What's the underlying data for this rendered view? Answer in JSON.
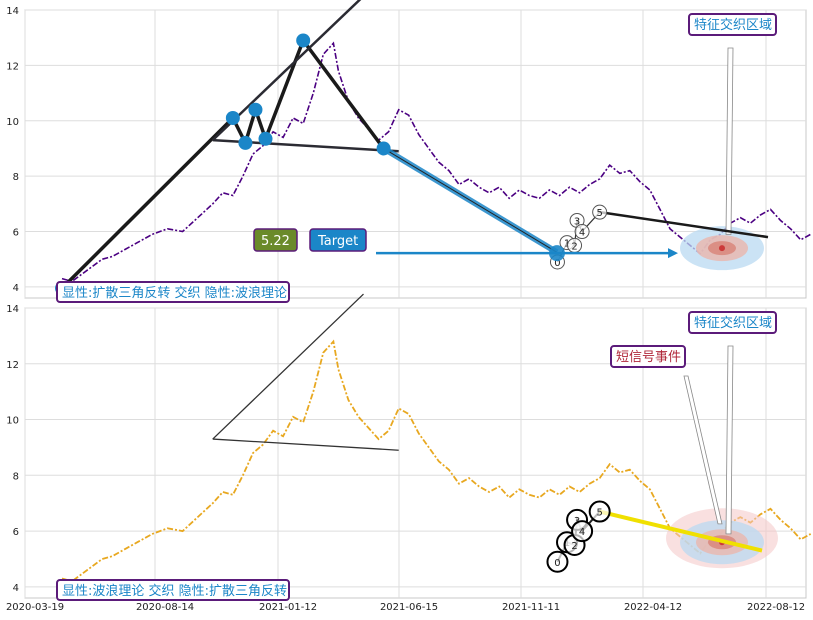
{
  "chart_data": [
    {
      "type": "line",
      "panel": "top",
      "ylim": [
        3.6,
        14
      ],
      "yticks": [
        "4",
        "6",
        "8",
        "10",
        "12",
        "14"
      ],
      "grid": true,
      "legend_text": "显性:扩散三角反转 交织 隐性:波浪理论",
      "zone_label": "特征交织区域",
      "price_badge": "5.22",
      "target_label": "Target",
      "series": [
        {
          "values": [
            [
              0.0,
              4.3
            ],
            [
              0.02,
              4.2
            ],
            [
              0.05,
              4.6
            ],
            [
              0.08,
              5.0
            ],
            [
              0.1,
              5.1
            ],
            [
              0.13,
              5.4
            ],
            [
              0.15,
              5.6
            ],
            [
              0.18,
              5.9
            ],
            [
              0.21,
              6.1
            ],
            [
              0.24,
              6.0
            ],
            [
              0.27,
              6.5
            ],
            [
              0.3,
              7.0
            ],
            [
              0.32,
              7.4
            ],
            [
              0.34,
              7.3
            ],
            [
              0.36,
              8.0
            ],
            [
              0.38,
              8.8
            ],
            [
              0.4,
              9.1
            ],
            [
              0.42,
              9.6
            ],
            [
              0.44,
              9.4
            ],
            [
              0.46,
              10.1
            ],
            [
              0.48,
              9.9
            ],
            [
              0.5,
              11.0
            ],
            [
              0.52,
              12.4
            ],
            [
              0.54,
              12.8
            ],
            [
              0.55,
              11.8
            ],
            [
              0.57,
              10.7
            ],
            [
              0.59,
              10.1
            ],
            [
              0.61,
              9.7
            ],
            [
              0.63,
              9.3
            ],
            [
              0.65,
              9.6
            ],
            [
              0.67,
              10.4
            ],
            [
              0.69,
              10.2
            ],
            [
              0.71,
              9.5
            ],
            [
              0.73,
              9.0
            ],
            [
              0.75,
              8.5
            ],
            [
              0.77,
              8.2
            ],
            [
              0.79,
              7.7
            ],
            [
              0.81,
              7.9
            ],
            [
              0.83,
              7.6
            ],
            [
              0.85,
              7.4
            ],
            [
              0.87,
              7.6
            ],
            [
              0.89,
              7.2
            ],
            [
              0.91,
              7.5
            ],
            [
              0.93,
              7.3
            ],
            [
              0.95,
              7.2
            ],
            [
              0.97,
              7.5
            ],
            [
              0.99,
              7.3
            ],
            [
              1.01,
              7.6
            ],
            [
              1.03,
              7.4
            ],
            [
              1.05,
              7.7
            ],
            [
              1.07,
              7.9
            ],
            [
              1.09,
              8.4
            ],
            [
              1.11,
              8.1
            ],
            [
              1.13,
              8.2
            ],
            [
              1.15,
              7.8
            ],
            [
              1.17,
              7.5
            ],
            [
              1.19,
              6.8
            ],
            [
              1.21,
              6.1
            ],
            [
              1.23,
              5.8
            ],
            [
              1.25,
              5.5
            ],
            [
              1.27,
              5.2
            ],
            [
              1.29,
              5.7
            ],
            [
              1.31,
              5.9
            ],
            [
              1.33,
              6.3
            ],
            [
              1.35,
              6.5
            ],
            [
              1.37,
              6.3
            ],
            [
              1.39,
              6.6
            ],
            [
              1.41,
              6.8
            ],
            [
              1.43,
              6.4
            ],
            [
              1.45,
              6.1
            ],
            [
              1.47,
              5.7
            ],
            [
              1.49,
              5.9
            ]
          ]
        }
      ]
    },
    {
      "type": "line",
      "panel": "bottom",
      "ylim": [
        3.6,
        14
      ],
      "yticks": [
        "4",
        "6",
        "8",
        "10",
        "12",
        "14"
      ],
      "xticks": [
        "2020-03-19",
        "2020-08-14",
        "2021-01-12",
        "2021-06-15",
        "2021-11-11",
        "2022-04-12",
        "2022-08-12"
      ],
      "grid": true,
      "legend_text": "显性:波浪理论 交织 隐性:扩散三角反转",
      "zone_label": "特征交织区域",
      "signal_label": "短信号事件",
      "series": [
        {
          "values": [
            [
              0.0,
              4.3
            ],
            [
              0.02,
              4.2
            ],
            [
              0.05,
              4.6
            ],
            [
              0.08,
              5.0
            ],
            [
              0.1,
              5.1
            ],
            [
              0.13,
              5.4
            ],
            [
              0.15,
              5.6
            ],
            [
              0.18,
              5.9
            ],
            [
              0.21,
              6.1
            ],
            [
              0.24,
              6.0
            ],
            [
              0.27,
              6.5
            ],
            [
              0.3,
              7.0
            ],
            [
              0.32,
              7.4
            ],
            [
              0.34,
              7.3
            ],
            [
              0.36,
              8.0
            ],
            [
              0.38,
              8.8
            ],
            [
              0.4,
              9.1
            ],
            [
              0.42,
              9.6
            ],
            [
              0.44,
              9.4
            ],
            [
              0.46,
              10.1
            ],
            [
              0.48,
              9.9
            ],
            [
              0.5,
              11.0
            ],
            [
              0.52,
              12.4
            ],
            [
              0.54,
              12.8
            ],
            [
              0.55,
              11.8
            ],
            [
              0.57,
              10.7
            ],
            [
              0.59,
              10.1
            ],
            [
              0.61,
              9.7
            ],
            [
              0.63,
              9.3
            ],
            [
              0.65,
              9.6
            ],
            [
              0.67,
              10.4
            ],
            [
              0.69,
              10.2
            ],
            [
              0.71,
              9.5
            ],
            [
              0.73,
              9.0
            ],
            [
              0.75,
              8.5
            ],
            [
              0.77,
              8.2
            ],
            [
              0.79,
              7.7
            ],
            [
              0.81,
              7.9
            ],
            [
              0.83,
              7.6
            ],
            [
              0.85,
              7.4
            ],
            [
              0.87,
              7.6
            ],
            [
              0.89,
              7.2
            ],
            [
              0.91,
              7.5
            ],
            [
              0.93,
              7.3
            ],
            [
              0.95,
              7.2
            ],
            [
              0.97,
              7.5
            ],
            [
              0.99,
              7.3
            ],
            [
              1.01,
              7.6
            ],
            [
              1.03,
              7.4
            ],
            [
              1.05,
              7.7
            ],
            [
              1.07,
              7.9
            ],
            [
              1.09,
              8.4
            ],
            [
              1.11,
              8.1
            ],
            [
              1.13,
              8.2
            ],
            [
              1.15,
              7.8
            ],
            [
              1.17,
              7.5
            ],
            [
              1.19,
              6.8
            ],
            [
              1.21,
              6.1
            ],
            [
              1.23,
              5.8
            ],
            [
              1.25,
              5.5
            ],
            [
              1.27,
              5.2
            ],
            [
              1.29,
              5.7
            ],
            [
              1.31,
              5.9
            ],
            [
              1.33,
              6.3
            ],
            [
              1.35,
              6.5
            ],
            [
              1.37,
              6.3
            ],
            [
              1.39,
              6.6
            ],
            [
              1.41,
              6.8
            ],
            [
              1.43,
              6.4
            ],
            [
              1.45,
              6.1
            ],
            [
              1.47,
              5.7
            ],
            [
              1.49,
              5.9
            ]
          ]
        }
      ]
    }
  ],
  "wave_labels": [
    "0",
    "1",
    "2",
    "3",
    "4",
    "5"
  ],
  "colors": {
    "top_series": "#4b0082",
    "bottom_series": "#e8a820",
    "pattern_line": "#1a1a1a",
    "point_blue": "#1b86c8",
    "label_border": "#5b1b7a",
    "label_text": "#1b86c8",
    "badge_green": "#6a8a2a",
    "signal_text": "#b0283a"
  }
}
